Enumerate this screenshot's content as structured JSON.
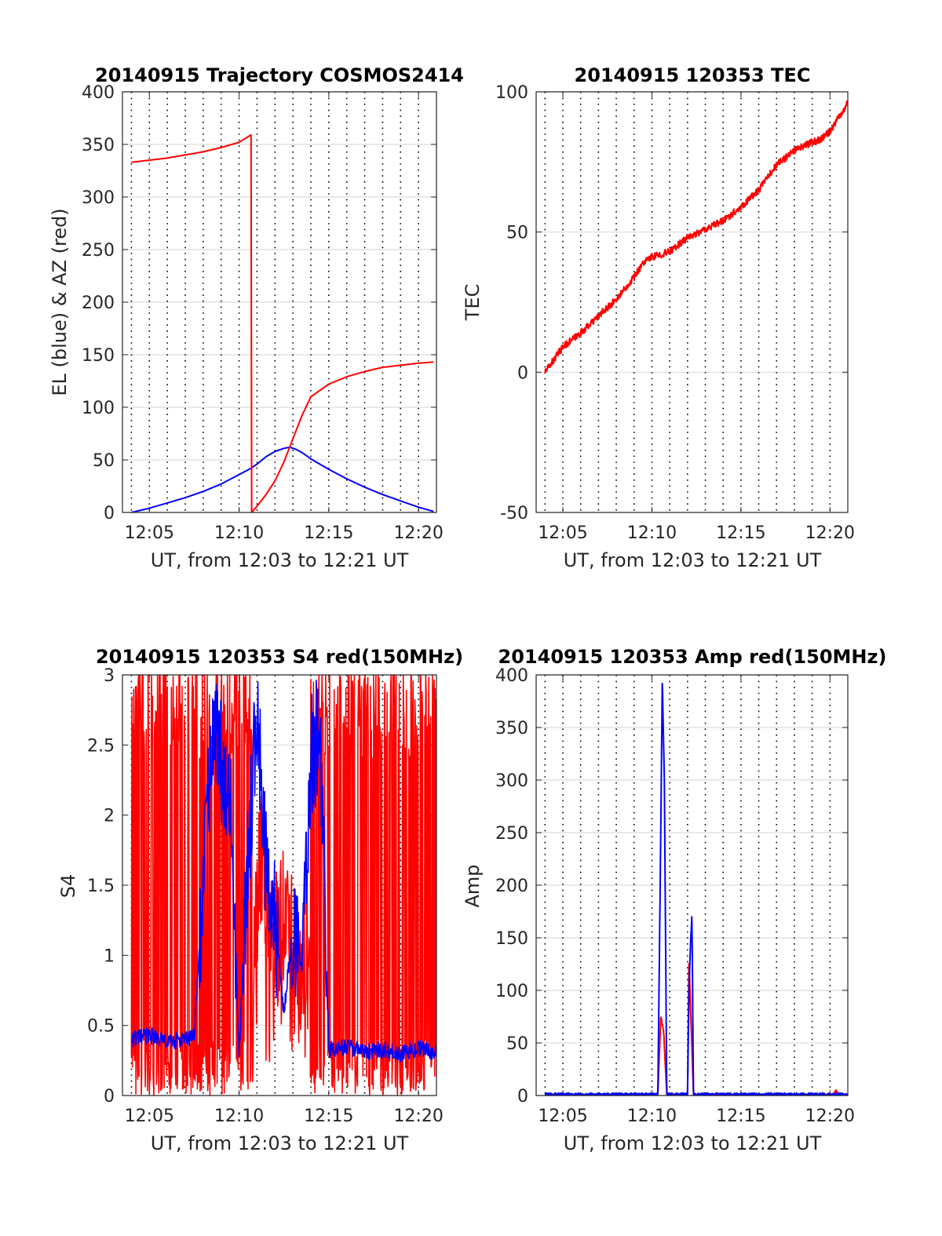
{
  "figure": {
    "background": "#ffffff",
    "line_colors": {
      "red": "#ff0000",
      "blue": "#0000ff"
    }
  },
  "chart_data": [
    {
      "type": "line",
      "title": "20140915 Trajectory COSMOS2414",
      "xlabel": "UT, from 12:03 to 12:21 UT",
      "ylabel": "EL (blue) & AZ (red)",
      "xlim_minutes_after_1200": [
        3.5,
        21
      ],
      "xticks": [
        "12:05",
        "12:10",
        "12:15",
        "12:20"
      ],
      "ylim": [
        0,
        400
      ],
      "yticks": [
        "0",
        "50",
        "100",
        "150",
        "200",
        "250",
        "300",
        "350",
        "400"
      ],
      "grid": true,
      "series": [
        {
          "color": "#0000ff",
          "x": [
            "12:04",
            "12:05",
            "12:06",
            "12:07",
            "12:08",
            "12:09",
            "12:10",
            "12:10:40",
            "12:11",
            "12:11:30",
            "12:12",
            "12:12:30",
            "12:12:50",
            "12:13:10",
            "12:13:30",
            "12:14",
            "12:15",
            "12:16",
            "12:17",
            "12:18",
            "12:19",
            "12:20",
            "12:20:50"
          ],
          "values": [
            0,
            4,
            9,
            14,
            20,
            27,
            36,
            42,
            46,
            53,
            58,
            61,
            62,
            60,
            57,
            51,
            41,
            32,
            24,
            17,
            11,
            5,
            1
          ]
        },
        {
          "color": "#ff0000",
          "x": [
            "12:04",
            "12:05",
            "12:06",
            "12:07",
            "12:08",
            "12:09",
            "12:10",
            "12:10:40",
            "12:10:42",
            "12:11",
            "12:11:30",
            "12:12",
            "12:12:30",
            "12:13",
            "12:13:30",
            "12:14",
            "12:15",
            "12:16",
            "12:17",
            "12:18",
            "12:19",
            "12:20",
            "12:20:50"
          ],
          "values": [
            333,
            335,
            337,
            340,
            343,
            347,
            352,
            359,
            0,
            6,
            17,
            30,
            48,
            70,
            92,
            110,
            122,
            129,
            134,
            138,
            140,
            142,
            143
          ]
        }
      ]
    },
    {
      "type": "line",
      "title": "20140915 120353 TEC",
      "xlabel": "UT, from 12:03 to 12:21 UT",
      "ylabel": "TEC",
      "xlim_minutes_after_1200": [
        3.5,
        21
      ],
      "xticks": [
        "12:05",
        "12:10",
        "12:15",
        "12:20"
      ],
      "ylim": [
        -50,
        100
      ],
      "yticks": [
        "-50",
        "0",
        "50",
        "100"
      ],
      "grid": true,
      "series": [
        {
          "color": "#ff0000",
          "x": [
            "12:04",
            "12:05",
            "12:06",
            "12:07",
            "12:08",
            "12:09",
            "12:09:30",
            "12:10",
            "12:11",
            "12:12",
            "12:13",
            "12:14",
            "12:15",
            "12:16",
            "12:17",
            "12:18",
            "12:19",
            "12:19:30",
            "12:20",
            "12:20:30",
            "12:21"
          ],
          "values": [
            0,
            9,
            14,
            20,
            26,
            34,
            39,
            41,
            43,
            48,
            51,
            54,
            59,
            65,
            74,
            79,
            82,
            83,
            86,
            91,
            96
          ]
        }
      ]
    },
    {
      "type": "line",
      "title": "20140915 120353 S4 red(150MHz)",
      "xlabel": "UT, from 12:03 to 12:21 UT",
      "ylabel": "S4",
      "xlim_minutes_after_1200": [
        3.5,
        21
      ],
      "xticks": [
        "12:05",
        "12:10",
        "12:15",
        "12:20"
      ],
      "ylim": [
        0,
        3
      ],
      "yticks": [
        "0",
        "0.5",
        "1",
        "1.5",
        "2",
        "2.5",
        "3"
      ],
      "grid": true,
      "series": [
        {
          "color": "#ff0000",
          "x": [
            "12:04",
            "12:07:30",
            "12:08:30",
            "12:09:30",
            "12:10",
            "12:10:30",
            "12:11",
            "12:11:30",
            "12:12",
            "12:12:30",
            "12:13",
            "12:14",
            "12:15",
            "12:16",
            "12:17",
            "12:18",
            "12:19",
            "12:20",
            "12:21"
          ],
          "values": [
            1.5,
            1.5,
            1.4,
            1.4,
            2.0,
            1.2,
            1.5,
            0.9,
            1.2,
            1.0,
            0.8,
            1.6,
            1.5,
            1.5,
            1.5,
            1.6,
            2.0,
            1.9,
            2.7
          ]
        },
        {
          "color": "#0000ff",
          "x": [
            "12:04",
            "12:05",
            "12:06",
            "12:07",
            "12:07:30",
            "12:08:30",
            "12:09:30",
            "12:10",
            "12:10:30",
            "12:11",
            "12:11:30",
            "12:12",
            "12:12:30",
            "12:13",
            "12:13:30",
            "12:14",
            "12:14:30",
            "12:15",
            "12:16",
            "12:17",
            "12:18",
            "12:19",
            "12:20",
            "12:21"
          ],
          "values": [
            0.4,
            0.43,
            0.38,
            0.4,
            0.42,
            2.6,
            2.2,
            0.3,
            1.7,
            2.8,
            1.6,
            1.2,
            0.6,
            1.2,
            0.9,
            2.4,
            2.6,
            0.33,
            0.35,
            0.31,
            0.33,
            0.3,
            0.34,
            0.3
          ]
        }
      ]
    },
    {
      "type": "line",
      "title": "20140915 120353 Amp red(150MHz)",
      "xlabel": "UT, from 12:03 to 12:21 UT",
      "ylabel": "Amp",
      "xlim_minutes_after_1200": [
        3.5,
        21
      ],
      "xticks": [
        "12:05",
        "12:10",
        "12:15",
        "12:20"
      ],
      "ylim": [
        0,
        400
      ],
      "yticks": [
        "0",
        "50",
        "100",
        "150",
        "200",
        "250",
        "300",
        "350",
        "400"
      ],
      "grid": true,
      "series": [
        {
          "color": "#ff0000",
          "x": [
            "12:04",
            "12:10:20",
            "12:10:30",
            "12:10:40",
            "12:10:50",
            "12:12:00",
            "12:12:05",
            "12:12:10",
            "12:12:20",
            "12:20:10",
            "12:20:20",
            "12:20:30",
            "12:21"
          ],
          "values": [
            0,
            0,
            75,
            60,
            0,
            0,
            130,
            85,
            0,
            0,
            4,
            0,
            0
          ]
        },
        {
          "color": "#0000ff",
          "x": [
            "12:04",
            "12:10:20",
            "12:10:28",
            "12:10:35",
            "12:10:42",
            "12:10:50",
            "12:12:00",
            "12:12:05",
            "12:12:10",
            "12:12:15",
            "12:12:20",
            "12:21"
          ],
          "values": [
            1,
            1,
            200,
            396,
            300,
            1,
            1,
            100,
            145,
            172,
            1,
            1
          ]
        }
      ]
    }
  ]
}
